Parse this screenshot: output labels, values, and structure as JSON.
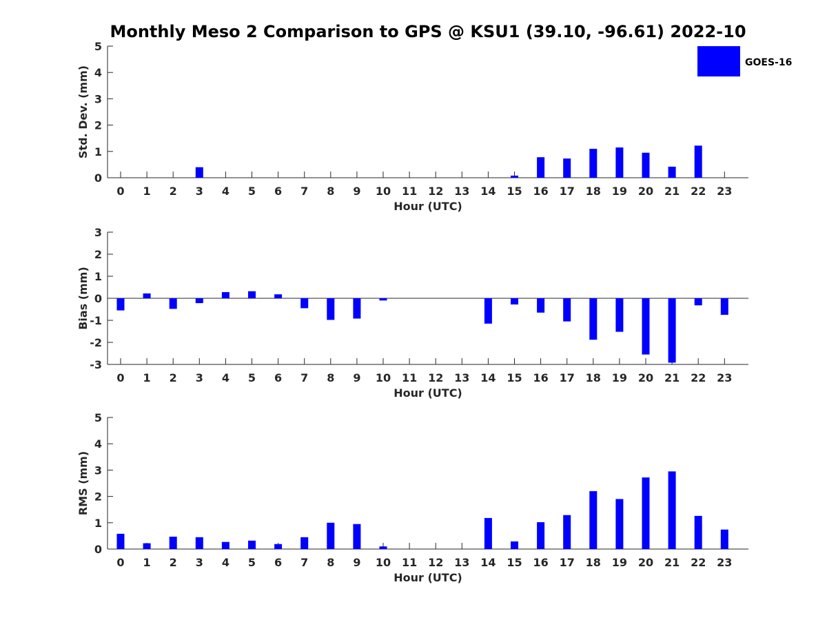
{
  "title": "Monthly Meso 2 Comparison to GPS @ KSU1 (39.10, -96.61) 2022-10",
  "legend": {
    "label": "GOES-16",
    "color": "#0000ff",
    "placement": "top-right"
  },
  "chart_data": [
    {
      "type": "bar",
      "xlabel": "Hour (UTC)",
      "ylabel": "Std. Dev. (mm)",
      "ylim": [
        0,
        5
      ],
      "yticks": [
        0,
        1,
        2,
        3,
        4,
        5
      ],
      "categories": [
        "0",
        "1",
        "2",
        "3",
        "4",
        "5",
        "6",
        "7",
        "8",
        "9",
        "10",
        "11",
        "12",
        "13",
        "14",
        "15",
        "16",
        "17",
        "18",
        "19",
        "20",
        "21",
        "22",
        "23"
      ],
      "series": [
        {
          "name": "GOES-16",
          "values": [
            null,
            null,
            null,
            0.4,
            null,
            null,
            null,
            null,
            null,
            null,
            null,
            null,
            null,
            null,
            null,
            0.08,
            0.78,
            0.73,
            1.1,
            1.15,
            0.95,
            0.42,
            1.22,
            null
          ]
        }
      ]
    },
    {
      "type": "bar",
      "xlabel": "Hour (UTC)",
      "ylabel": "Bias (mm)",
      "ylim": [
        -3,
        3
      ],
      "yticks": [
        -3,
        -2,
        -1,
        0,
        1,
        2,
        3
      ],
      "categories": [
        "0",
        "1",
        "2",
        "3",
        "4",
        "5",
        "6",
        "7",
        "8",
        "9",
        "10",
        "11",
        "12",
        "13",
        "14",
        "15",
        "16",
        "17",
        "18",
        "19",
        "20",
        "21",
        "22",
        "23"
      ],
      "series": [
        {
          "name": "GOES-16",
          "values": [
            -0.55,
            0.22,
            -0.48,
            -0.22,
            0.28,
            0.32,
            0.18,
            -0.45,
            -0.98,
            -0.92,
            -0.1,
            null,
            null,
            null,
            -1.15,
            -0.28,
            -0.65,
            -1.05,
            -1.88,
            -1.52,
            -2.55,
            -2.92,
            -0.32,
            -0.75
          ]
        }
      ]
    },
    {
      "type": "bar",
      "xlabel": "Hour (UTC)",
      "ylabel": "RMS (mm)",
      "ylim": [
        0,
        5
      ],
      "yticks": [
        0,
        1,
        2,
        3,
        4,
        5
      ],
      "categories": [
        "0",
        "1",
        "2",
        "3",
        "4",
        "5",
        "6",
        "7",
        "8",
        "9",
        "10",
        "11",
        "12",
        "13",
        "14",
        "15",
        "16",
        "17",
        "18",
        "19",
        "20",
        "21",
        "22",
        "23"
      ],
      "series": [
        {
          "name": "GOES-16",
          "values": [
            0.58,
            0.22,
            0.47,
            0.45,
            0.27,
            0.32,
            0.19,
            0.45,
            1.0,
            0.95,
            0.1,
            null,
            null,
            null,
            1.18,
            0.29,
            1.02,
            1.29,
            2.2,
            1.9,
            2.72,
            2.95,
            1.26,
            0.74
          ]
        }
      ]
    }
  ]
}
